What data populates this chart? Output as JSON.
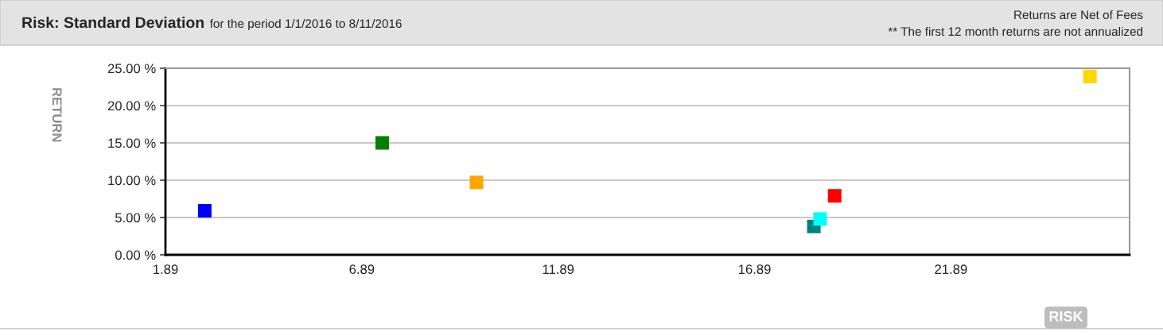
{
  "chart_data": {
    "type": "scatter",
    "title": "Risk: Standard Deviation",
    "subtitle": "for the period 1/1/2016 to 8/11/2016",
    "annotations": [
      "Returns are Net of Fees",
      "** The first 12 month returns are not annualized"
    ],
    "xlabel": "RISK",
    "ylabel": "RETURN",
    "x": [
      2.89,
      7.41,
      9.81,
      18.4,
      18.56,
      18.93,
      25.43
    ],
    "values": [
      5.9,
      15.0,
      9.7,
      3.8,
      4.8,
      7.9,
      23.9
    ],
    "colors": [
      "#0000ff",
      "#008000",
      "#ffa500",
      "#008080",
      "#00ffff",
      "#ff0000",
      "#ffd700"
    ],
    "xlim": [
      1.89,
      26.44
    ],
    "xticks": [
      1.89,
      6.89,
      11.89,
      16.89,
      21.89
    ],
    "ylim": [
      0,
      25
    ],
    "yticks": [
      {
        "value": 0,
        "label": "0.00 %"
      },
      {
        "value": 5,
        "label": "5.00 %"
      },
      {
        "value": 10,
        "label": "10.00 %"
      },
      {
        "value": 15,
        "label": "15.00 %"
      },
      {
        "value": 20,
        "label": "20.00 %"
      },
      {
        "value": 25,
        "label": "25.00 %"
      }
    ],
    "grid": "y",
    "marker": "square",
    "legend": false
  }
}
